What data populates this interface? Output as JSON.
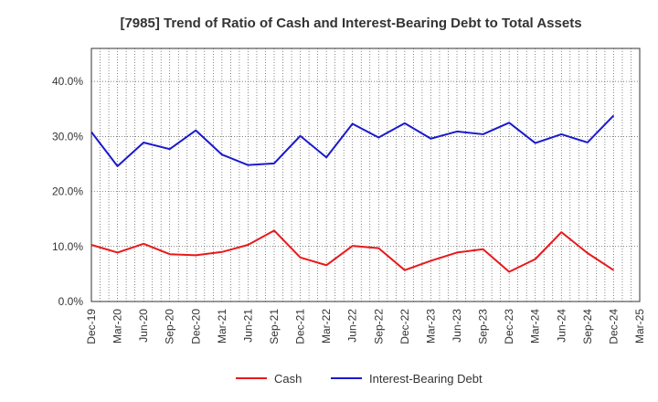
{
  "chart_data": {
    "type": "line",
    "title": "[7985]  Trend of Ratio of Cash and Interest-Bearing Debt to Total Assets",
    "xlabel": "",
    "ylabel": "",
    "x": [
      "Dec-19",
      "Mar-20",
      "Jun-20",
      "Sep-20",
      "Dec-20",
      "Mar-21",
      "Jun-21",
      "Sep-21",
      "Dec-21",
      "Mar-22",
      "Jun-22",
      "Sep-22",
      "Dec-22",
      "Mar-23",
      "Jun-23",
      "Sep-23",
      "Dec-23",
      "Mar-24",
      "Jun-24",
      "Sep-24",
      "Dec-24",
      "Mar-25"
    ],
    "ylim": [
      0,
      46
    ],
    "yticks": [
      0,
      10,
      20,
      30,
      40
    ],
    "ytick_labels": [
      "0.0%",
      "10.0%",
      "20.0%",
      "30.0%",
      "40.0%"
    ],
    "grid": true,
    "legend_position": "bottom-center",
    "series": [
      {
        "name": "Cash",
        "color": "#e8191a",
        "values": [
          10.3,
          8.9,
          10.5,
          8.6,
          8.4,
          9.0,
          10.3,
          12.9,
          8.0,
          6.6,
          10.1,
          9.7,
          5.7,
          7.4,
          8.9,
          9.5,
          5.4,
          7.7,
          12.6,
          8.8,
          5.7,
          null
        ]
      },
      {
        "name": "Interest-Bearing Debt",
        "color": "#1a1acc",
        "values": [
          30.8,
          24.6,
          28.9,
          27.7,
          31.1,
          26.7,
          24.8,
          25.1,
          30.1,
          26.2,
          32.3,
          29.8,
          32.4,
          29.6,
          30.9,
          30.4,
          32.5,
          28.8,
          30.4,
          28.9,
          33.8,
          null
        ]
      }
    ]
  }
}
